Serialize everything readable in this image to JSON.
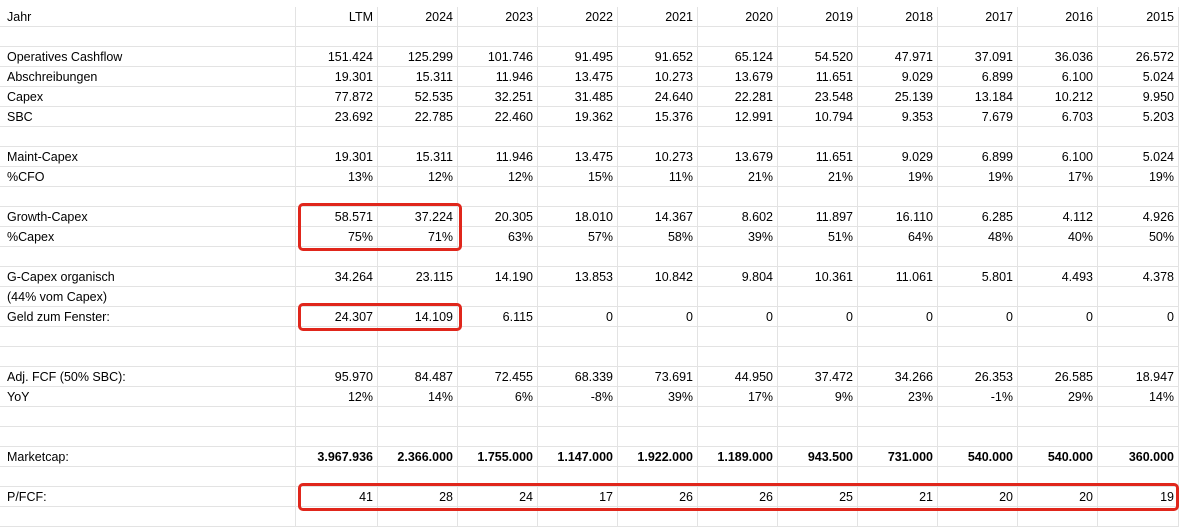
{
  "columns": [
    "Jahr",
    "LTM",
    "2024",
    "2023",
    "2022",
    "2021",
    "2020",
    "2019",
    "2018",
    "2017",
    "2016",
    "2015"
  ],
  "rows": [
    {
      "label": "Jahr",
      "values": [
        "LTM",
        "2024",
        "2023",
        "2022",
        "2021",
        "2020",
        "2019",
        "2018",
        "2017",
        "2016",
        "2015"
      ],
      "header": true
    },
    {
      "label": "",
      "values": [
        "",
        "",
        "",
        "",
        "",
        "",
        "",
        "",
        "",
        "",
        ""
      ]
    },
    {
      "label": "Operatives Cashflow",
      "values": [
        "151.424",
        "125.299",
        "101.746",
        "91.495",
        "91.652",
        "65.124",
        "54.520",
        "47.971",
        "37.091",
        "36.036",
        "26.572"
      ]
    },
    {
      "label": "Abschreibungen",
      "values": [
        "19.301",
        "15.311",
        "11.946",
        "13.475",
        "10.273",
        "13.679",
        "11.651",
        "9.029",
        "6.899",
        "6.100",
        "5.024"
      ]
    },
    {
      "label": "Capex",
      "values": [
        "77.872",
        "52.535",
        "32.251",
        "31.485",
        "24.640",
        "22.281",
        "23.548",
        "25.139",
        "13.184",
        "10.212",
        "9.950"
      ]
    },
    {
      "label": "SBC",
      "values": [
        "23.692",
        "22.785",
        "22.460",
        "19.362",
        "15.376",
        "12.991",
        "10.794",
        "9.353",
        "7.679",
        "6.703",
        "5.203"
      ]
    },
    {
      "label": "",
      "values": [
        "",
        "",
        "",
        "",
        "",
        "",
        "",
        "",
        "",
        "",
        ""
      ]
    },
    {
      "label": "Maint-Capex",
      "values": [
        "19.301",
        "15.311",
        "11.946",
        "13.475",
        "10.273",
        "13.679",
        "11.651",
        "9.029",
        "6.899",
        "6.100",
        "5.024"
      ]
    },
    {
      "label": "%CFO",
      "values": [
        "13%",
        "12%",
        "12%",
        "15%",
        "11%",
        "21%",
        "21%",
        "19%",
        "19%",
        "17%",
        "19%"
      ]
    },
    {
      "label": "",
      "values": [
        "",
        "",
        "",
        "",
        "",
        "",
        "",
        "",
        "",
        "",
        ""
      ]
    },
    {
      "label": "Growth-Capex",
      "values": [
        "58.571",
        "37.224",
        "20.305",
        "18.010",
        "14.367",
        "8.602",
        "11.897",
        "16.110",
        "6.285",
        "4.112",
        "4.926"
      ]
    },
    {
      "label": "%Capex",
      "values": [
        "75%",
        "71%",
        "63%",
        "57%",
        "58%",
        "39%",
        "51%",
        "64%",
        "48%",
        "40%",
        "50%"
      ]
    },
    {
      "label": "",
      "values": [
        "",
        "",
        "",
        "",
        "",
        "",
        "",
        "",
        "",
        "",
        ""
      ]
    },
    {
      "label": "G-Capex organisch",
      "values": [
        "34.264",
        "23.115",
        "14.190",
        "13.853",
        "10.842",
        "9.804",
        "10.361",
        "11.061",
        "5.801",
        "4.493",
        "4.378"
      ]
    },
    {
      "label": "(44% vom Capex)",
      "values": [
        "",
        "",
        "",
        "",
        "",
        "",
        "",
        "",
        "",
        "",
        ""
      ]
    },
    {
      "label": "Geld zum Fenster:",
      "values": [
        "24.307",
        "14.109",
        "6.115",
        "0",
        "0",
        "0",
        "0",
        "0",
        "0",
        "0",
        "0"
      ]
    },
    {
      "label": "",
      "values": [
        "",
        "",
        "",
        "",
        "",
        "",
        "",
        "",
        "",
        "",
        ""
      ]
    },
    {
      "label": "",
      "values": [
        "",
        "",
        "",
        "",
        "",
        "",
        "",
        "",
        "",
        "",
        ""
      ]
    },
    {
      "label": "Adj. FCF (50% SBC):",
      "values": [
        "95.970",
        "84.487",
        "72.455",
        "68.339",
        "73.691",
        "44.950",
        "37.472",
        "34.266",
        "26.353",
        "26.585",
        "18.947"
      ]
    },
    {
      "label": "YoY",
      "values": [
        "12%",
        "14%",
        "6%",
        "-8%",
        "39%",
        "17%",
        "9%",
        "23%",
        "-1%",
        "29%",
        "14%"
      ]
    },
    {
      "label": "",
      "values": [
        "",
        "",
        "",
        "",
        "",
        "",
        "",
        "",
        "",
        "",
        ""
      ]
    },
    {
      "label": "",
      "values": [
        "",
        "",
        "",
        "",
        "",
        "",
        "",
        "",
        "",
        "",
        ""
      ]
    },
    {
      "label": "Marketcap:",
      "values": [
        "3.967.936",
        "2.366.000",
        "1.755.000",
        "1.147.000",
        "1.922.000",
        "1.189.000",
        "943.500",
        "731.000",
        "540.000",
        "540.000",
        "360.000"
      ],
      "bold": true
    },
    {
      "label": "",
      "values": [
        "",
        "",
        "",
        "",
        "",
        "",
        "",
        "",
        "",
        "",
        ""
      ]
    },
    {
      "label": "P/FCF:",
      "values": [
        "41",
        "28",
        "24",
        "17",
        "26",
        "26",
        "25",
        "21",
        "20",
        "20",
        "19"
      ]
    },
    {
      "label": "",
      "values": [
        "",
        "",
        "",
        "",
        "",
        "",
        "",
        "",
        "",
        "",
        ""
      ]
    }
  ],
  "highlights": [
    {
      "name": "highlight-growth-capex",
      "from_row": 10,
      "to_row": 11,
      "from_col": 1,
      "to_col": 2
    },
    {
      "name": "highlight-geld-zum-fenster",
      "from_row": 15,
      "to_row": 15,
      "from_col": 1,
      "to_col": 2
    },
    {
      "name": "highlight-p-fcf",
      "from_row": 24,
      "to_row": 24,
      "from_col": 1,
      "to_col": 11
    }
  ],
  "colors": {
    "highlight": "#e0261b",
    "grid": "#e3e3e3"
  }
}
